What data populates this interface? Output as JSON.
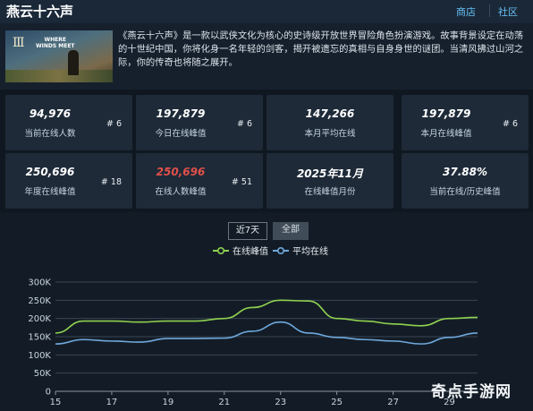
{
  "header": {
    "title": "燕云十六声",
    "store_link": "商店",
    "community_link": "社区"
  },
  "cover": {
    "glyph": "Ⅲ",
    "logo_line1": "WHERE",
    "logo_line2": "WINDS MEET"
  },
  "description": "《燕云十六声》是一款以武侠文化为核心的史诗级开放世界冒险角色扮演游戏。故事背景设定在动荡的十世纪中国，你将化身一名年轻的剑客，揭开被遗忘的真相与自身身世的谜团。当清风拂过山河之际，你的传奇也将随之展开。",
  "stats": [
    {
      "value": "94,976",
      "label": "当前在线人数",
      "rank": "# 6"
    },
    {
      "value": "197,879",
      "label": "今日在线峰值",
      "rank": "# 6"
    },
    {
      "value": "147,266",
      "label": "本月平均在线",
      "rank": ""
    },
    {
      "value": "197,879",
      "label": "本月在线峰值",
      "rank": "# 6"
    },
    {
      "value": "250,696",
      "label": "年度在线峰值",
      "rank": "# 18"
    },
    {
      "value": "250,696",
      "label": "在线人数峰值",
      "rank": "# 51"
    },
    {
      "value": "2025年11月",
      "label": "在线峰值月份",
      "rank": ""
    },
    {
      "value": "37.88%",
      "label": "当前在线/历史峰值",
      "rank": ""
    }
  ],
  "range_buttons": {
    "seven_days": "近7天",
    "all": "全部"
  },
  "colors": {
    "peak": "#8fd14f",
    "avg": "#6fa8dc",
    "highlight": "#e0504a"
  },
  "chart_data": {
    "type": "line",
    "title": "",
    "xlabel": "",
    "ylabel": "",
    "x": [
      15,
      16,
      17,
      18,
      19,
      20,
      21,
      22,
      23,
      24,
      25,
      26,
      27,
      28,
      29,
      30
    ],
    "xticks": [
      "15",
      "17",
      "19",
      "21",
      "23",
      "25",
      "27",
      "29"
    ],
    "yticks": [
      "0",
      "50K",
      "100K",
      "150K",
      "200K",
      "250K",
      "300K"
    ],
    "ylim": [
      0,
      300000
    ],
    "xlim": [
      15,
      30
    ],
    "grid": true,
    "legend_position": "top",
    "series": [
      {
        "name": "在线峰值",
        "values": [
          160000,
          193000,
          193000,
          190000,
          193000,
          193000,
          200000,
          230000,
          250000,
          248000,
          200000,
          193000,
          185000,
          180000,
          200000,
          203000
        ]
      },
      {
        "name": "平均在线",
        "values": [
          130000,
          142000,
          138000,
          135000,
          145000,
          145000,
          146000,
          165000,
          190000,
          160000,
          148000,
          142000,
          138000,
          130000,
          148000,
          160000
        ]
      }
    ]
  },
  "watermark": "奇点手游网"
}
